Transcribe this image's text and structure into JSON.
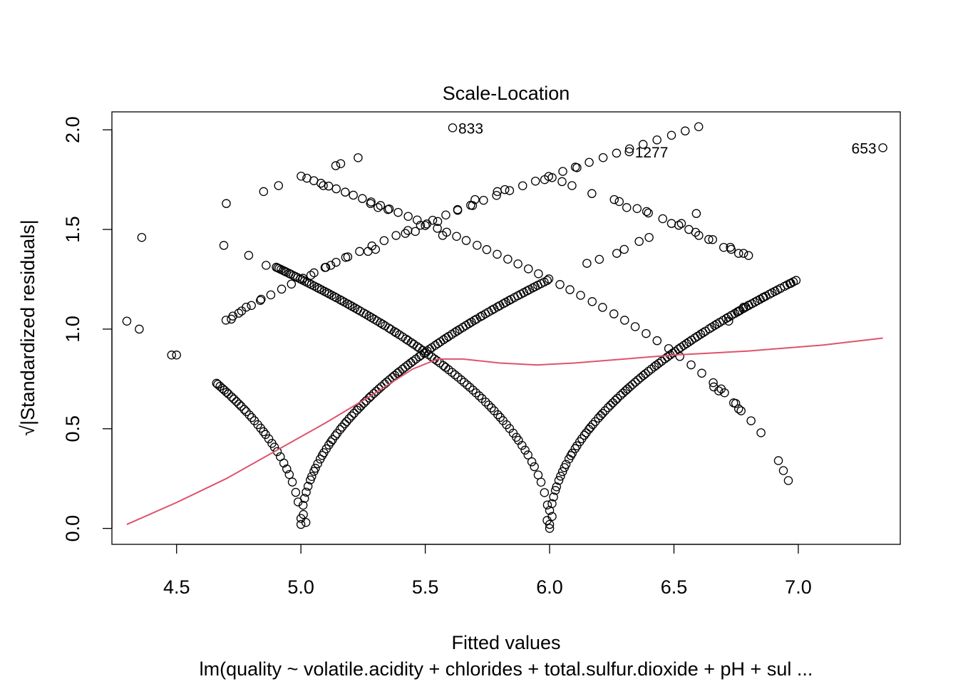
{
  "chart_data": {
    "type": "scatter",
    "title": "Scale-Location",
    "xlabel": "Fitted values",
    "ylabel": "√|Standardized residuals|",
    "subtitle": "lm(quality ~ volatile.acidity + chlorides + total.sulfur.dioxide + pH + sul ...",
    "xlim": [
      4.24,
      7.41
    ],
    "ylim": [
      -0.08,
      2.09
    ],
    "x_ticks": [
      4.5,
      5.0,
      5.5,
      6.0,
      6.5,
      7.0
    ],
    "x_tick_labels": [
      "4.5",
      "5.0",
      "5.5",
      "6.0",
      "6.5",
      "7.0"
    ],
    "y_ticks": [
      0.0,
      0.5,
      1.0,
      1.5,
      2.0
    ],
    "y_tick_labels": [
      "0.0",
      "0.5",
      "1.0",
      "1.5",
      "2.0"
    ],
    "grid": false,
    "legend": "none",
    "point_color": "#000000",
    "smooth_color": "#DF536B",
    "labeled_points": [
      {
        "label": "833",
        "x": 5.61,
        "y": 2.01,
        "side": "right"
      },
      {
        "label": "1277",
        "x": 6.32,
        "y": 1.89,
        "side": "right"
      },
      {
        "label": "653",
        "x": 7.34,
        "y": 1.91,
        "side": "left"
      }
    ],
    "curve_groups": [
      {
        "name": "arm-quality-5-left",
        "target": 5,
        "x_from": 4.66,
        "x_to": 4.99,
        "n": 32
      },
      {
        "name": "arm-quality-5-right",
        "target": 5,
        "x_from": 5.01,
        "x_to": 5.99,
        "n": 95
      },
      {
        "name": "arm-quality-6-left",
        "target": 6,
        "x_from": 4.9,
        "x_to": 5.99,
        "n": 100
      },
      {
        "name": "arm-quality-6-right",
        "target": 6,
        "x_from": 6.01,
        "x_to": 6.99,
        "n": 95
      },
      {
        "name": "arm-quality-7-left",
        "target": 7,
        "x_from": 5.0,
        "x_to": 6.75,
        "n": 45
      },
      {
        "name": "arm-quality-4-right",
        "target": 4,
        "x_from": 4.7,
        "x_to": 6.6,
        "n": 40
      },
      {
        "name": "arm-quality-8-left",
        "target": 8,
        "x_from": 6.35,
        "x_to": 6.8,
        "n": 8
      }
    ],
    "extra_points": [
      [
        4.3,
        1.04
      ],
      [
        4.35,
        1.0
      ],
      [
        4.36,
        1.46
      ],
      [
        4.48,
        0.87
      ],
      [
        4.5,
        0.87
      ],
      [
        4.7,
        1.63
      ],
      [
        4.69,
        1.42
      ],
      [
        4.72,
        1.05
      ],
      [
        4.75,
        1.08
      ],
      [
        4.78,
        1.11
      ],
      [
        4.84,
        1.15
      ],
      [
        4.86,
        1.32
      ],
      [
        4.79,
        1.37
      ],
      [
        4.85,
        1.69
      ],
      [
        4.91,
        1.72
      ],
      [
        5.09,
        1.72
      ],
      [
        5.14,
        1.82
      ],
      [
        5.16,
        1.83
      ],
      [
        5.23,
        1.86
      ],
      [
        5.28,
        1.63
      ],
      [
        5.31,
        1.61
      ],
      [
        5.35,
        1.6
      ],
      [
        5.57,
        1.47
      ],
      [
        5.63,
        1.6
      ],
      [
        5.7,
        1.65
      ],
      [
        5.69,
        1.62
      ],
      [
        5.79,
        1.69
      ],
      [
        5.82,
        1.7
      ],
      [
        5.98,
        1.75
      ],
      [
        6.01,
        1.76
      ],
      [
        6.05,
        1.74
      ],
      [
        6.09,
        1.72
      ],
      [
        6.11,
        1.81
      ],
      [
        6.17,
        1.68
      ],
      [
        6.26,
        1.65
      ],
      [
        6.28,
        1.64
      ],
      [
        6.31,
        1.61
      ],
      [
        6.39,
        1.59
      ],
      [
        6.49,
        1.53
      ],
      [
        6.53,
        1.53
      ],
      [
        6.56,
        1.5
      ],
      [
        6.59,
        1.58
      ],
      [
        6.6,
        1.47
      ],
      [
        6.64,
        1.45
      ],
      [
        6.7,
        1.41
      ],
      [
        6.73,
        1.4
      ],
      [
        6.76,
        1.38
      ],
      [
        6.78,
        1.38
      ],
      [
        6.72,
        1.04
      ],
      [
        6.76,
        1.09
      ],
      [
        6.78,
        1.11
      ],
      [
        6.8,
        1.12
      ],
      [
        6.86,
        1.16
      ],
      [
        6.97,
        1.23
      ],
      [
        6.92,
        0.34
      ],
      [
        6.94,
        0.29
      ],
      [
        6.96,
        0.24
      ],
      [
        6.85,
        0.48
      ],
      [
        6.81,
        0.54
      ],
      [
        6.77,
        0.59
      ],
      [
        6.76,
        0.6
      ],
      [
        6.74,
        0.63
      ],
      [
        6.66,
        0.71
      ],
      [
        6.68,
        0.69
      ],
      [
        6.69,
        0.7
      ],
      [
        5.02,
        0.03
      ],
      [
        5.0,
        0.05
      ],
      [
        5.01,
        0.07
      ],
      [
        6.0,
        0.02
      ],
      [
        5.99,
        0.04
      ],
      [
        6.01,
        0.06
      ],
      [
        6.0,
        0.09
      ],
      [
        5.0,
        0.02
      ],
      [
        6.0,
        0.0
      ],
      [
        5.3,
        1.4
      ],
      [
        5.27,
        1.39
      ],
      [
        5.18,
        1.36
      ],
      [
        5.12,
        1.32
      ],
      [
        5.1,
        1.31
      ],
      [
        5.04,
        1.27
      ],
      [
        5.42,
        1.48
      ],
      [
        5.46,
        1.49
      ],
      [
        5.55,
        1.54
      ],
      [
        5.5,
        1.52
      ],
      [
        6.3,
        1.4
      ],
      [
        6.27,
        1.38
      ],
      [
        6.2,
        1.35
      ],
      [
        6.15,
        1.33
      ],
      [
        6.36,
        1.44
      ],
      [
        6.4,
        1.46
      ]
    ],
    "smooth_line": {
      "x": [
        4.3,
        4.5,
        4.7,
        4.9,
        5.1,
        5.3,
        5.45,
        5.55,
        5.65,
        5.8,
        5.95,
        6.1,
        6.3,
        6.5,
        6.8,
        7.1,
        7.34
      ],
      "y": [
        0.02,
        0.13,
        0.25,
        0.39,
        0.53,
        0.68,
        0.8,
        0.85,
        0.85,
        0.83,
        0.82,
        0.83,
        0.85,
        0.87,
        0.89,
        0.92,
        0.955
      ]
    }
  }
}
